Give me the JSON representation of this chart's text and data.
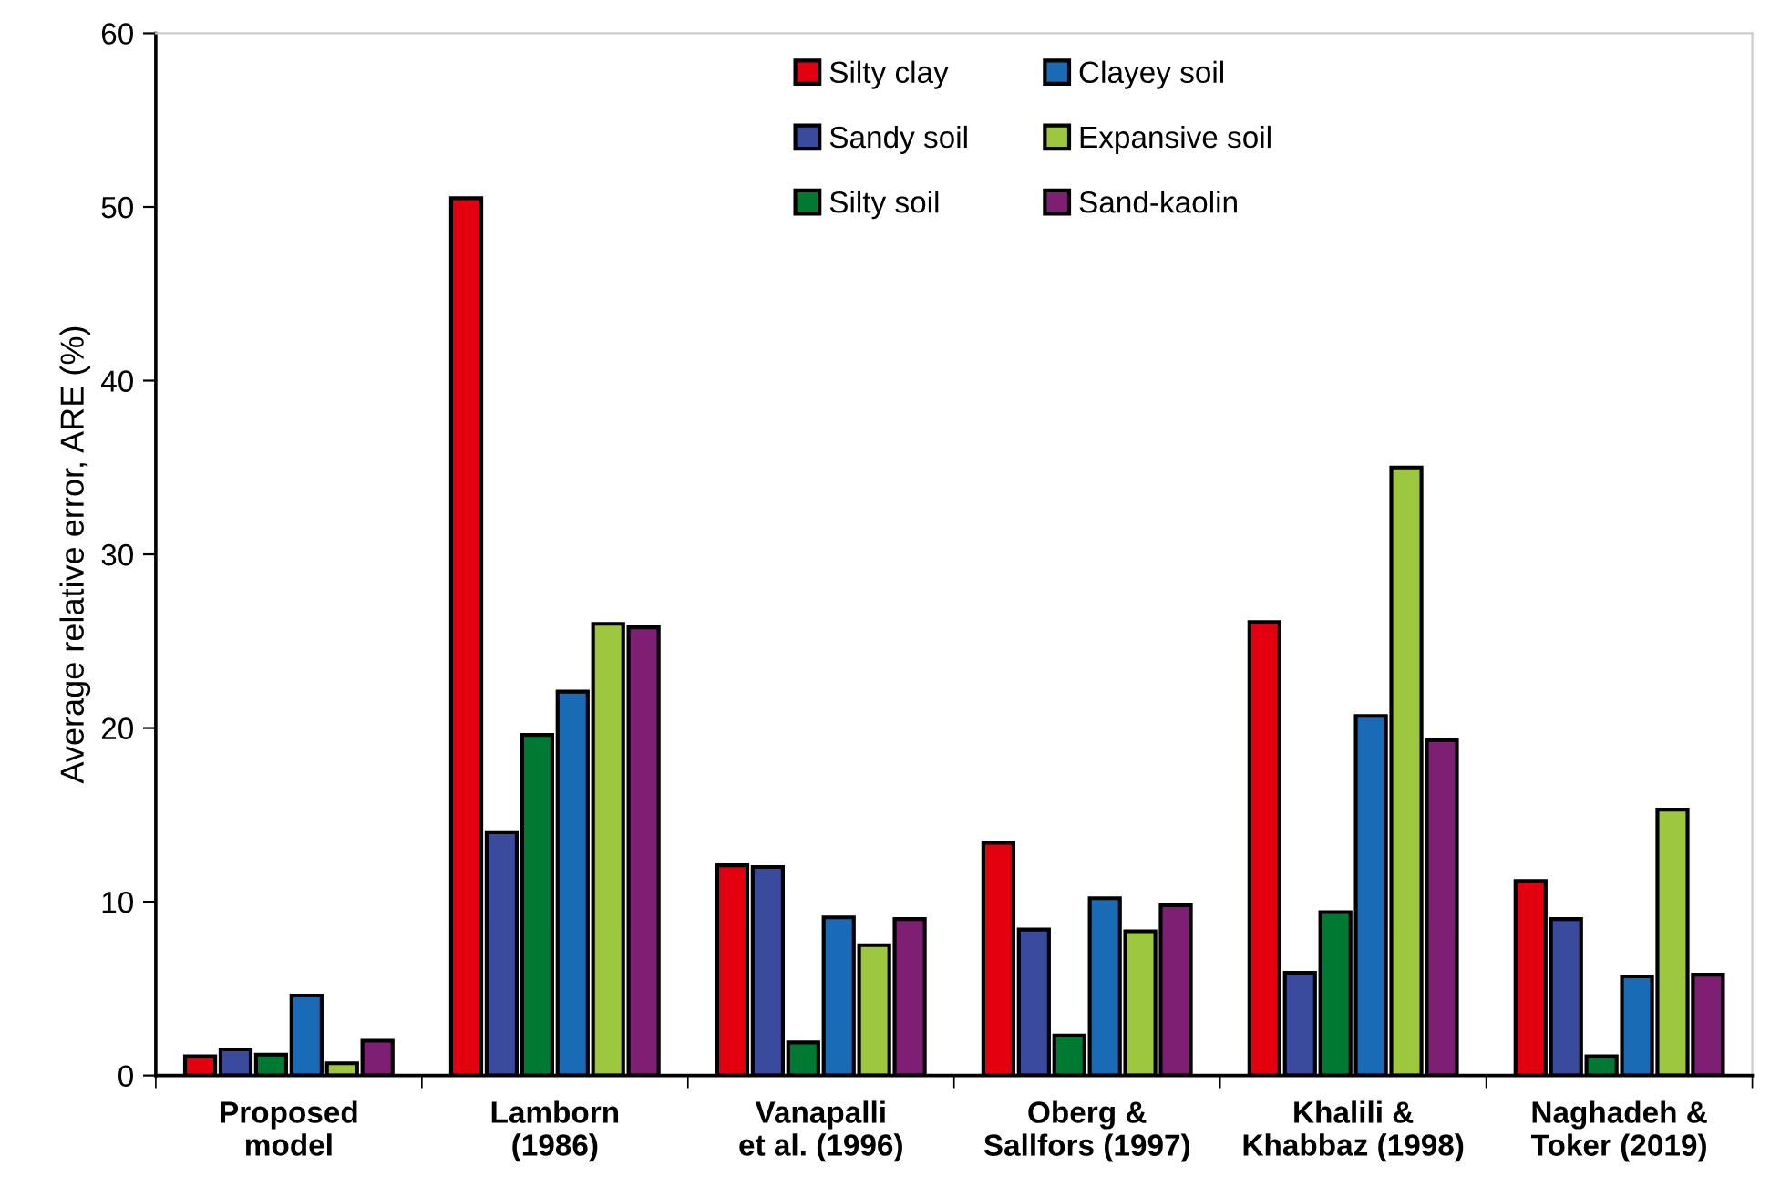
{
  "chart_data": {
    "type": "bar",
    "ylabel": "Average relative error, ARE (%)",
    "categories": [
      "Proposed\nmodel",
      "Lamborn\n(1986)",
      "Vanapalli\net al. (1996)",
      "Oberg &\nSallfors (1997)",
      "Khalili &\nKhabbaz (1998)",
      "Naghadeh &\nToker (2019)"
    ],
    "series": [
      {
        "name": "Silty clay",
        "color": "#e3000f",
        "values": [
          1.1,
          50.5,
          12.1,
          13.4,
          26.1,
          11.2
        ]
      },
      {
        "name": "Sandy soil",
        "color": "#3a4a9c",
        "values": [
          1.5,
          14.0,
          12.0,
          8.4,
          5.9,
          9.0
        ]
      },
      {
        "name": "Silty soil",
        "color": "#007a33",
        "values": [
          1.2,
          19.6,
          1.9,
          2.3,
          9.4,
          1.1
        ]
      },
      {
        "name": "Clayey soil",
        "color": "#1a6bb5",
        "values": [
          4.6,
          22.1,
          9.1,
          10.2,
          20.7,
          5.7
        ]
      },
      {
        "name": "Expansive soil",
        "color": "#9dc73e",
        "values": [
          0.7,
          26.0,
          7.5,
          8.3,
          35.0,
          15.3
        ]
      },
      {
        "name": "Sand-kaolin",
        "color": "#7e1f74",
        "values": [
          2.0,
          25.8,
          9.0,
          9.8,
          19.3,
          5.8
        ]
      }
    ],
    "ylim": [
      0,
      60
    ],
    "yticks": [
      0,
      10,
      20,
      30,
      40,
      50,
      60
    ],
    "legend": "top",
    "grid": false
  }
}
